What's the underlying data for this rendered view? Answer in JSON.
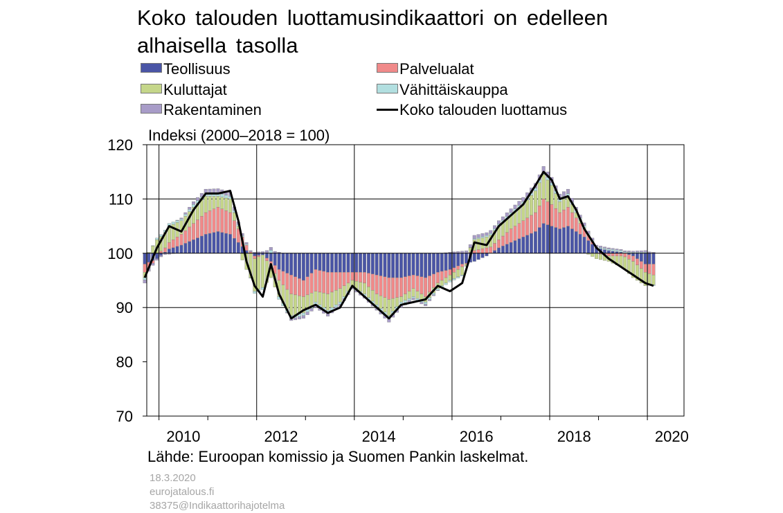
{
  "title_lines": [
    "Koko talouden luottamusindikaattori on edelleen",
    "alhaisella tasolla"
  ],
  "legend": [
    {
      "label": "Teollisuus",
      "color": "#4a55a6",
      "type": "bar"
    },
    {
      "label": "Palvelualat",
      "color": "#f08a8a",
      "type": "bar"
    },
    {
      "label": "Kuluttajat",
      "color": "#c5d68a",
      "type": "bar"
    },
    {
      "label": "Vähittäiskauppa",
      "color": "#b2dfe0",
      "type": "bar"
    },
    {
      "label": "Rakentaminen",
      "color": "#a89cc8",
      "type": "bar"
    },
    {
      "label": "Koko talouden luottamus",
      "color": "#000000",
      "type": "line"
    }
  ],
  "y_axis_label": "Indeksi (2000–2018 = 100)",
  "source": "Lähde: Euroopan komissio ja Suomen Pankin laskelmat.",
  "meta": [
    "18.3.2020",
    "eurojatalous.fi",
    "38375@Indikaattorihajotelma"
  ],
  "chart_data": {
    "type": "bar",
    "stacked": true,
    "baseline": 100,
    "ylim": [
      70,
      120
    ],
    "yticks": [
      70,
      80,
      90,
      100,
      110,
      120
    ],
    "xlim": [
      2009.75,
      2020.75
    ],
    "xticks": [
      "2010",
      "2012",
      "2014",
      "2016",
      "2018",
      "2020"
    ],
    "xtick_positions": [
      2010,
      2012,
      2014,
      2016,
      2018,
      2020
    ],
    "grid": "vertical every 2 years, horizontal at 90, 100 and 110",
    "series_colors": {
      "teollisuus": "#4a55a6",
      "palvelualat": "#f08a8a",
      "kuluttajat": "#c5d68a",
      "vahittaiskauppa": "#b2dfe0",
      "rakentaminen": "#a89cc8",
      "koko": "#000000"
    },
    "x_start": "2009-09",
    "frequency": "monthly",
    "keyframes": [
      {
        "date": "2009-09",
        "teollisuus": -2,
        "palvelualat": -1.5,
        "kuluttajat": -1,
        "vahittaiskauppa": -0.4,
        "rakentaminen": -0.6,
        "koko": 95.5
      },
      {
        "date": "2009-12",
        "teollisuus": -1,
        "palvelualat": 0,
        "kuluttajat": 2.5,
        "vahittaiskauppa": 0.3,
        "rakentaminen": -0.3,
        "koko": 101
      },
      {
        "date": "2010-03",
        "teollisuus": 0.8,
        "palvelualat": 1.2,
        "kuluttajat": 3,
        "vahittaiskauppa": 0.5,
        "rakentaminen": -0.2,
        "koko": 105
      },
      {
        "date": "2010-06",
        "teollisuus": 1.5,
        "palvelualat": 2,
        "kuluttajat": 2.5,
        "vahittaiskauppa": 0.3,
        "rakentaminen": 0.2,
        "koko": 104
      },
      {
        "date": "2010-09",
        "teollisuus": 2.5,
        "palvelualat": 3,
        "kuluttajat": 3,
        "vahittaiskauppa": 0.5,
        "rakentaminen": 0.5,
        "koko": 108
      },
      {
        "date": "2010-12",
        "teollisuus": 3.5,
        "palvelualat": 4,
        "kuluttajat": 3,
        "vahittaiskauppa": 0.6,
        "rakentaminen": 0.7,
        "koko": 111
      },
      {
        "date": "2011-03",
        "teollisuus": 4,
        "palvelualat": 4.5,
        "kuluttajat": 2,
        "vahittaiskauppa": 0.6,
        "rakentaminen": 0.8,
        "koko": 111
      },
      {
        "date": "2011-06",
        "teollisuus": 3.5,
        "palvelualat": 4,
        "kuluttajat": 2.5,
        "vahittaiskauppa": 0.5,
        "rakentaminen": 0.8,
        "koko": 111.5
      },
      {
        "date": "2011-08",
        "teollisuus": 2,
        "palvelualat": 2.5,
        "kuluttajat": 0.5,
        "vahittaiskauppa": 0.3,
        "rakentaminen": 0.5,
        "koko": 106
      },
      {
        "date": "2011-10",
        "teollisuus": 0.5,
        "palvelualat": 1,
        "kuluttajat": -3,
        "vahittaiskauppa": 0.2,
        "rakentaminen": 0.3,
        "koko": 98.5
      },
      {
        "date": "2011-12",
        "teollisuus": -0.5,
        "palvelualat": -0.5,
        "kuluttajat": -6,
        "vahittaiskauppa": -0.4,
        "rakentaminen": 0.2,
        "koko": 94
      },
      {
        "date": "2012-02",
        "teollisuus": -0.3,
        "palvelualat": 0,
        "kuluttajat": -6,
        "vahittaiskauppa": -0.4,
        "rakentaminen": 0.3,
        "koko": 92
      },
      {
        "date": "2012-04",
        "teollisuus": -1.5,
        "palvelualat": -1,
        "kuluttajat": -2,
        "vahittaiskauppa": 0.6,
        "rakentaminen": 0.5,
        "koko": 98
      },
      {
        "date": "2012-06",
        "teollisuus": -3,
        "palvelualat": -2,
        "kuluttajat": -3,
        "vahittaiskauppa": -0.5,
        "rakentaminen": 0.2,
        "koko": 92.5
      },
      {
        "date": "2012-09",
        "teollisuus": -4,
        "palvelualat": -3.5,
        "kuluttajat": -4,
        "vahittaiskauppa": -0.6,
        "rakentaminen": -0.3,
        "koko": 88
      },
      {
        "date": "2012-12",
        "teollisuus": -5,
        "palvelualat": -3,
        "kuluttajat": -3,
        "vahittaiskauppa": -0.5,
        "rakentaminen": -0.5,
        "koko": 89.5
      },
      {
        "date": "2013-03",
        "teollisuus": -3,
        "palvelualat": -4,
        "kuluttajat": -2,
        "vahittaiskauppa": -0.5,
        "rakentaminen": -0.5,
        "koko": 90.5
      },
      {
        "date": "2013-06",
        "teollisuus": -3.5,
        "palvelualat": -4,
        "kuluttajat": -3,
        "vahittaiskauppa": -0.6,
        "rakentaminen": -0.5,
        "koko": 89
      },
      {
        "date": "2013-09",
        "teollisuus": -3.5,
        "palvelualat": -3,
        "kuluttajat": -2.5,
        "vahittaiskauppa": -0.4,
        "rakentaminen": -0.4,
        "koko": 90
      },
      {
        "date": "2013-12",
        "teollisuus": -3.5,
        "palvelualat": -1.5,
        "kuluttajat": -1,
        "vahittaiskauppa": -0.3,
        "rakentaminen": -0.3,
        "koko": 94
      },
      {
        "date": "2014-03",
        "teollisuus": -3.5,
        "palvelualat": -2,
        "kuluttajat": -2,
        "vahittaiskauppa": -0.5,
        "rakentaminen": -0.3,
        "koko": 92
      },
      {
        "date": "2014-06",
        "teollisuus": -4,
        "palvelualat": -3.5,
        "kuluttajat": -2,
        "vahittaiskauppa": -0.6,
        "rakentaminen": -0.4,
        "koko": 90
      },
      {
        "date": "2014-09",
        "teollisuus": -4.5,
        "palvelualat": -4,
        "kuluttajat": -3,
        "vahittaiskauppa": -0.6,
        "rakentaminen": -0.6,
        "koko": 88
      },
      {
        "date": "2014-12",
        "teollisuus": -4.5,
        "palvelualat": -3.5,
        "kuluttajat": -1,
        "vahittaiskauppa": -0.5,
        "rakentaminen": -0.5,
        "koko": 90.5
      },
      {
        "date": "2015-03",
        "teollisuus": -4,
        "palvelualat": -2.5,
        "kuluttajat": -1.5,
        "vahittaiskauppa": -0.3,
        "rakentaminen": -0.3,
        "koko": 91
      },
      {
        "date": "2015-06",
        "teollisuus": -4.5,
        "palvelualat": -3.5,
        "kuluttajat": -1,
        "vahittaiskauppa": -0.4,
        "rakentaminen": -0.3,
        "koko": 91.5
      },
      {
        "date": "2015-09",
        "teollisuus": -3.5,
        "palvelualat": -2,
        "kuluttajat": -1,
        "vahittaiskauppa": -0.3,
        "rakentaminen": -0.1,
        "koko": 94
      },
      {
        "date": "2015-12",
        "teollisuus": -3,
        "palvelualat": -1,
        "kuluttajat": -1,
        "vahittaiskauppa": -0.3,
        "rakentaminen": 0.2,
        "koko": 93
      },
      {
        "date": "2016-03",
        "teollisuus": -2,
        "palvelualat": -0.5,
        "kuluttajat": -1.5,
        "vahittaiskauppa": -0.2,
        "rakentaminen": 0.4,
        "koko": 94.5
      },
      {
        "date": "2016-06",
        "teollisuus": -1.5,
        "palvelualat": 0.5,
        "kuluttajat": 2,
        "vahittaiskauppa": 0.2,
        "rakentaminen": 0.6,
        "koko": 102
      },
      {
        "date": "2016-09",
        "teollisuus": -0.5,
        "palvelualat": 1,
        "kuluttajat": 2,
        "vahittaiskauppa": 0.3,
        "rakentaminen": 0.5,
        "koko": 101.5
      },
      {
        "date": "2016-12",
        "teollisuus": 1,
        "palvelualat": 1.5,
        "kuluttajat": 2.5,
        "vahittaiskauppa": 0.4,
        "rakentaminen": 0.6,
        "koko": 105
      },
      {
        "date": "2017-03",
        "teollisuus": 2,
        "palvelualat": 2.5,
        "kuluttajat": 2.5,
        "vahittaiskauppa": 0.5,
        "rakentaminen": 0.7,
        "koko": 107
      },
      {
        "date": "2017-06",
        "teollisuus": 3,
        "palvelualat": 3,
        "kuluttajat": 3,
        "vahittaiskauppa": 0.5,
        "rakentaminen": 0.8,
        "koko": 109
      },
      {
        "date": "2017-09",
        "teollisuus": 4,
        "palvelualat": 3.5,
        "kuluttajat": 4,
        "vahittaiskauppa": 0.5,
        "rakentaminen": 0.9,
        "koko": 112.5
      },
      {
        "date": "2017-11",
        "teollisuus": 5.5,
        "palvelualat": 4.5,
        "kuluttajat": 4.5,
        "vahittaiskauppa": 0.5,
        "rakentaminen": 1,
        "koko": 115
      },
      {
        "date": "2018-01",
        "teollisuus": 5,
        "palvelualat": 4,
        "kuluttajat": 3.5,
        "vahittaiskauppa": 0.5,
        "rakentaminen": 1,
        "koko": 113.5
      },
      {
        "date": "2018-03",
        "teollisuus": 4.5,
        "palvelualat": 3,
        "kuluttajat": 2,
        "vahittaiskauppa": 0.5,
        "rakentaminen": 0.9,
        "koko": 110
      },
      {
        "date": "2018-05",
        "teollisuus": 5,
        "palvelualat": 3.5,
        "kuluttajat": 2,
        "vahittaiskauppa": 0.5,
        "rakentaminen": 0.8,
        "koko": 110.5
      },
      {
        "date": "2018-07",
        "teollisuus": 4,
        "palvelualat": 2.5,
        "kuluttajat": 1,
        "vahittaiskauppa": 0.4,
        "rakentaminen": 0.6,
        "koko": 108
      },
      {
        "date": "2018-09",
        "teollisuus": 3,
        "palvelualat": 1.5,
        "kuluttajat": 0.2,
        "vahittaiskauppa": 0.4,
        "rakentaminen": 0.5,
        "koko": 104.5
      },
      {
        "date": "2018-12",
        "teollisuus": 1,
        "palvelualat": 0,
        "kuluttajat": -1,
        "vahittaiskauppa": 0.2,
        "rakentaminen": 0.3,
        "koko": 101
      },
      {
        "date": "2019-03",
        "teollisuus": 0.5,
        "palvelualat": -0.5,
        "kuluttajat": -1,
        "vahittaiskauppa": 0.3,
        "rakentaminen": 0.2,
        "koko": 99
      },
      {
        "date": "2019-06",
        "teollisuus": 0.2,
        "palvelualat": -0.5,
        "kuluttajat": -2,
        "vahittaiskauppa": 0.3,
        "rakentaminen": 0.2,
        "koko": 97.5
      },
      {
        "date": "2019-09",
        "teollisuus": -0.5,
        "palvelualat": -1,
        "kuluttajat": -3,
        "vahittaiskauppa": 0.2,
        "rakentaminen": 0.2,
        "koko": 96
      },
      {
        "date": "2019-12",
        "teollisuus": -2,
        "palvelualat": -1.5,
        "kuluttajat": -2.5,
        "vahittaiskauppa": 0.2,
        "rakentaminen": 0.3,
        "koko": 94.5
      },
      {
        "date": "2020-02",
        "teollisuus": -2,
        "palvelualat": -2,
        "kuluttajat": -1.8,
        "vahittaiskauppa": -0.2,
        "rakentaminen": 0.2,
        "koko": 94
      }
    ]
  }
}
